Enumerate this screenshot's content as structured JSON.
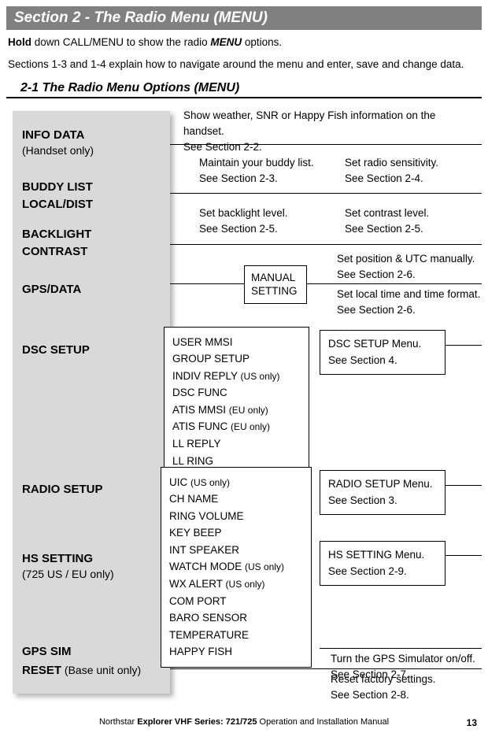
{
  "section_header": "Section 2 - The Radio Menu (MENU)",
  "intro1_pre": "Hold",
  "intro1_mid": " down CALL/MENU to show the radio ",
  "intro1_bold": "MENU",
  "intro1_post": " options.",
  "intro2": "Sections 1-3 and 1-4 explain how to navigate around the menu and enter, save and change data.",
  "sub_header": "2-1 The Radio Menu Options (MENU)",
  "menu": {
    "info_data": "INFO DATA",
    "info_data_sub": "(Handset only)",
    "buddy": "BUDDY LIST",
    "local": "LOCAL/DIST",
    "backlight": "BACKLIGHT",
    "contrast": "CONTRAST",
    "gps": "GPS/DATA",
    "dsc": "DSC SETUP",
    "radio": "RADIO SETUP",
    "hs": "HS SETTING",
    "hs_sub": "(725 US / EU only)",
    "gps_sim": "GPS SIM",
    "reset": "RESET",
    "reset_sub": " (Base unit only)"
  },
  "desc": {
    "info": "Show weather, SNR or Happy Fish information on the handset.",
    "info_see": "See Section 2-2.",
    "buddy": "Maintain your buddy list.",
    "buddy_see": "See Section 2-3.",
    "local": "Set radio sensitivity.",
    "local_see": "See Section 2-4.",
    "backlight": "Set backlight level.",
    "backlight_see": "See Section 2-5.",
    "contrast": "Set contrast level.",
    "contrast_see": "See Section 2-5.",
    "manual_pos": "Set position & UTC manually.",
    "manual_pos_see": "See Section 2-6.",
    "manual_time": "Set local time and time format.",
    "manual_time_see": "See Section 2-6.",
    "dsc_menu": "DSC SETUP Menu.",
    "dsc_menu_see": "See Section 4.",
    "radio_menu": "RADIO SETUP Menu.",
    "radio_menu_see": "See Section 3.",
    "hs_menu": "HS SETTING Menu.",
    "hs_menu_see": "See Section 2-9.",
    "gps_sim": "Turn the GPS Simulator on/off.",
    "gps_sim_see": "See Section 2-7.",
    "reset": "Reset factory settings.",
    "reset_see": "See Section 2-8."
  },
  "manual_box": "MANUAL SETTING",
  "dsc_items": [
    "USER MMSI",
    "GROUP SETUP",
    "INDIV REPLY <span class='reg-note'>(US only)</span>",
    "DSC FUNC",
    "ATIS MMSI <span class='reg-note'>(EU only)</span>",
    "ATIS FUNC <span class='reg-note'>(EU only)</span>",
    "LL REPLY",
    "LL RING"
  ],
  "radio_items": [
    "UIC <span class='reg-note'>(US only)</span>",
    "CH NAME",
    "RING VOLUME",
    "KEY BEEP",
    "INT SPEAKER",
    "WATCH MODE <span class='reg-note'>(US only)</span>",
    "WX ALERT <span class='reg-note'>(US only)</span>",
    "COM PORT",
    "BARO SENSOR",
    "TEMPERATURE",
    "HAPPY FISH"
  ],
  "footer_pre": "Northstar ",
  "footer_bold": "Explorer VHF Series: 721/725",
  "footer_post": " Operation and Installation Manual",
  "page": "13"
}
